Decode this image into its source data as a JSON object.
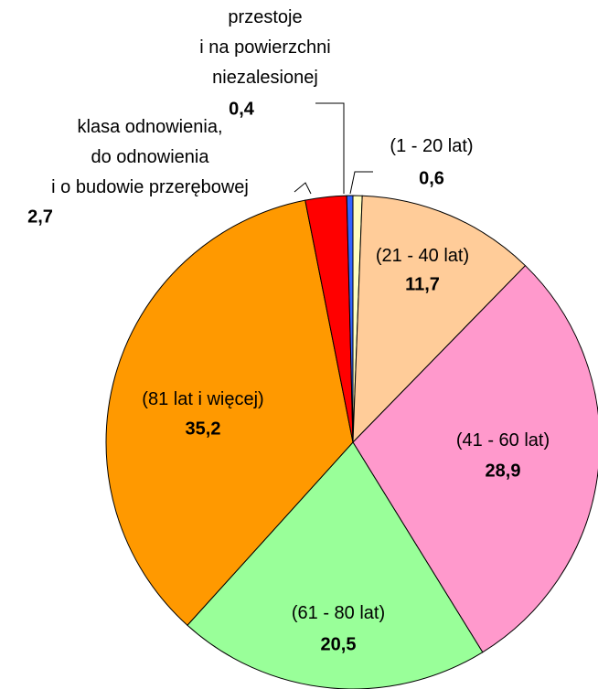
{
  "chart_data": {
    "type": "pie",
    "categories": [
      "(1 - 20 lat)",
      "(21 - 40 lat)",
      "(41 - 60 lat)",
      "(61 - 80 lat)",
      "(81 lat i więcej)",
      "klasa odnowienia,\ndo odnowienia\ni o budowie przerębowej",
      "przestoje\ni na powierzchni\nniezalesionej"
    ],
    "values": [
      0.6,
      11.7,
      28.9,
      20.5,
      35.2,
      2.7,
      0.4
    ],
    "value_labels": [
      "0,6",
      "11,7",
      "28,9",
      "20,5",
      "35,2",
      "2,7",
      "0,4"
    ],
    "colors": [
      "#ffffc0",
      "#ffcc99",
      "#ff99cc",
      "#99ff99",
      "#ff9900",
      "#ff0000",
      "#3366ff"
    ]
  }
}
